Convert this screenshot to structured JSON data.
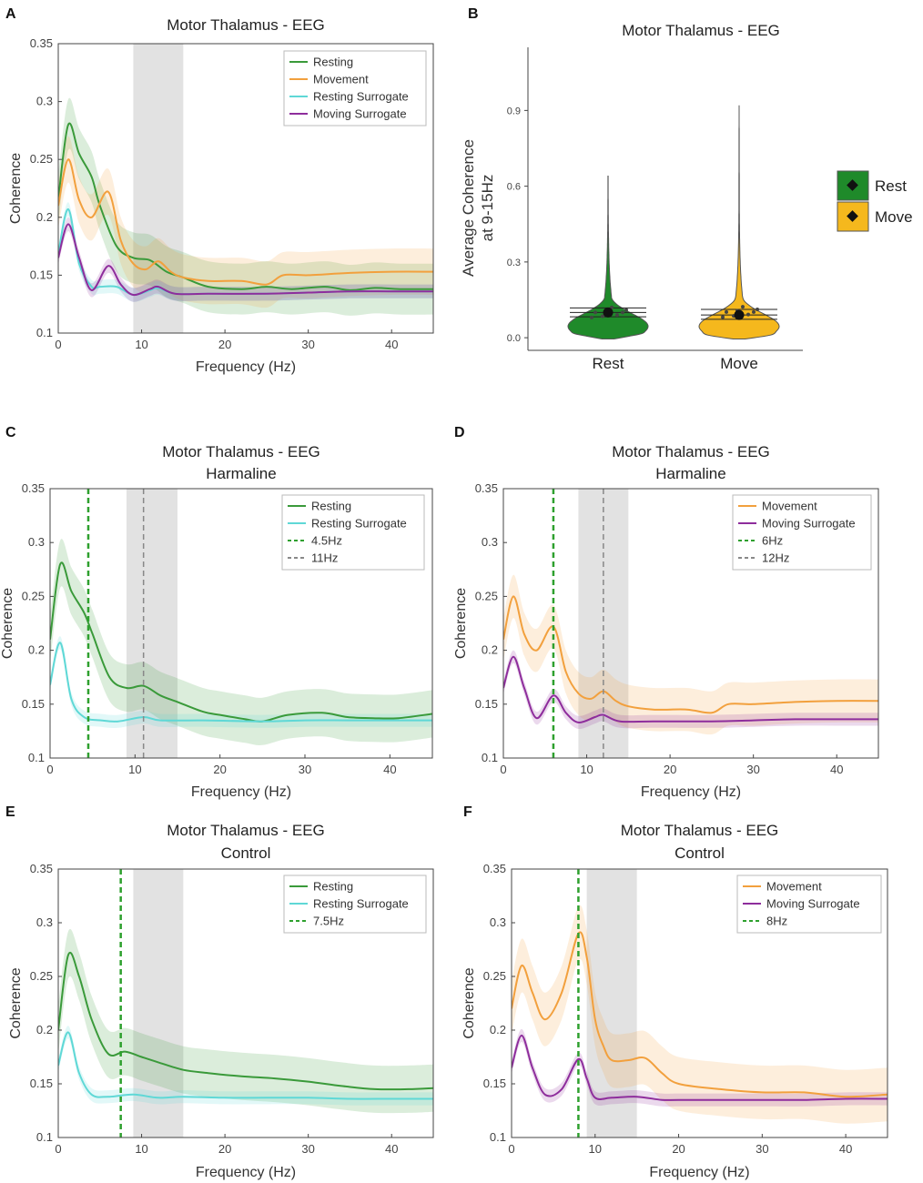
{
  "chart_data": [
    {
      "panel": "A",
      "type": "line",
      "title": "Motor Thalamus - EEG",
      "subtitle": "",
      "xlabel": "Frequency (Hz)",
      "ylabel": "Coherence",
      "xlim": [
        0,
        45
      ],
      "ylim": [
        0.1,
        0.35
      ],
      "xticks": [
        0,
        10,
        20,
        30,
        40
      ],
      "yticks": [
        0.1,
        0.15,
        0.2,
        0.25,
        0.3,
        0.35
      ],
      "ytick_labels": [
        "0.1",
        "0.15",
        "0.2",
        "0.25",
        "0.3",
        "0.35"
      ],
      "shaded_band": [
        9,
        15
      ],
      "legend": [
        "Resting",
        "Movement",
        "Resting Surrogate",
        "Moving Surrogate"
      ],
      "series": [
        {
          "name": "Resting",
          "color": "#3a9a3a",
          "band": 0.022,
          "x": [
            0,
            1.2,
            2.5,
            4,
            5,
            7,
            9,
            11,
            13,
            15,
            18,
            22,
            25,
            28,
            32,
            35,
            38,
            41,
            45
          ],
          "y": [
            0.215,
            0.28,
            0.255,
            0.235,
            0.21,
            0.175,
            0.165,
            0.163,
            0.153,
            0.148,
            0.14,
            0.138,
            0.14,
            0.138,
            0.14,
            0.137,
            0.139,
            0.138,
            0.138
          ]
        },
        {
          "name": "Movement",
          "color": "#f2a03d",
          "band": 0.02,
          "x": [
            0,
            1.2,
            2.5,
            4,
            6,
            7.5,
            9,
            10.5,
            12,
            13.5,
            15,
            18,
            22,
            25,
            27,
            30,
            35,
            40,
            45
          ],
          "y": [
            0.21,
            0.25,
            0.215,
            0.2,
            0.222,
            0.18,
            0.16,
            0.155,
            0.162,
            0.153,
            0.148,
            0.145,
            0.145,
            0.142,
            0.15,
            0.15,
            0.152,
            0.153,
            0.153
          ]
        },
        {
          "name": "Resting Surrogate",
          "color": "#5fd8d6",
          "band": 0.006,
          "x": [
            0,
            1.2,
            2.5,
            4,
            5,
            7,
            9,
            11,
            12,
            14,
            18,
            25,
            30,
            35,
            40,
            45
          ],
          "y": [
            0.168,
            0.207,
            0.16,
            0.14,
            0.14,
            0.14,
            0.133,
            0.137,
            0.139,
            0.134,
            0.134,
            0.134,
            0.135,
            0.136,
            0.136,
            0.136
          ]
        },
        {
          "name": "Moving Surrogate",
          "color": "#8e2d9c",
          "band": 0.006,
          "x": [
            0,
            1.2,
            2.5,
            4,
            6,
            7.5,
            9,
            11,
            12,
            14,
            18,
            25,
            30,
            35,
            40,
            45
          ],
          "y": [
            0.165,
            0.194,
            0.165,
            0.137,
            0.158,
            0.142,
            0.133,
            0.138,
            0.14,
            0.134,
            0.134,
            0.134,
            0.135,
            0.136,
            0.136,
            0.136
          ]
        }
      ]
    },
    {
      "panel": "B",
      "type": "violin",
      "title": "Motor Thalamus - EEG",
      "xlabel": "",
      "ylabel": "Average Coherence at 9-15Hz",
      "ylabel_lines": [
        "Average Coherence",
        "at 9-15Hz"
      ],
      "ylim": [
        -0.05,
        1.15
      ],
      "yticks": [
        0.0,
        0.3,
        0.6,
        0.9
      ],
      "ytick_labels": [
        "0.0",
        "0.3",
        "0.6",
        "0.9"
      ],
      "categories": [
        "Rest",
        "Move"
      ],
      "colors": [
        "#1f8a2a",
        "#f5b81d"
      ],
      "legend": [
        "Rest",
        "Move"
      ],
      "means": [
        0.1,
        0.09
      ],
      "ci": [
        [
          0.083,
          0.118
        ],
        [
          0.073,
          0.112
        ]
      ],
      "max": [
        0.64,
        0.92
      ]
    },
    {
      "panel": "C",
      "type": "line",
      "title": "Motor Thalamus - EEG",
      "subtitle": "Harmaline",
      "xlabel": "Frequency (Hz)",
      "ylabel": "Coherence",
      "xlim": [
        0,
        45
      ],
      "ylim": [
        0.1,
        0.35
      ],
      "xticks": [
        0,
        10,
        20,
        30,
        40
      ],
      "yticks": [
        0.1,
        0.15,
        0.2,
        0.25,
        0.3,
        0.35
      ],
      "ytick_labels": [
        "0.1",
        "0.15",
        "0.2",
        "0.25",
        "0.3",
        "0.35"
      ],
      "shaded_band": [
        9,
        15
      ],
      "vlines": [
        {
          "x": 4.5,
          "color": "#2ea02e",
          "label": "4.5Hz"
        },
        {
          "x": 11,
          "color": "#888888",
          "label": "11Hz"
        }
      ],
      "legend": [
        "Resting",
        "Resting Surrogate",
        "4.5Hz",
        "11Hz"
      ],
      "series": [
        {
          "name": "Resting",
          "color": "#3a9a3a",
          "band": 0.022,
          "x": [
            0,
            1.2,
            2.5,
            4,
            5,
            7,
            9,
            11,
            13,
            15,
            18,
            20,
            23,
            25,
            28,
            32,
            35,
            38,
            41,
            45
          ],
          "y": [
            0.21,
            0.28,
            0.255,
            0.235,
            0.215,
            0.175,
            0.165,
            0.167,
            0.158,
            0.152,
            0.143,
            0.14,
            0.136,
            0.134,
            0.14,
            0.142,
            0.138,
            0.137,
            0.137,
            0.141
          ]
        },
        {
          "name": "Resting Surrogate",
          "color": "#5fd8d6",
          "band": 0.006,
          "x": [
            0,
            1.2,
            2.5,
            4,
            6,
            8,
            11,
            13,
            18,
            25,
            30,
            35,
            40,
            45
          ],
          "y": [
            0.168,
            0.207,
            0.155,
            0.138,
            0.135,
            0.134,
            0.138,
            0.135,
            0.135,
            0.134,
            0.135,
            0.135,
            0.135,
            0.135
          ]
        }
      ]
    },
    {
      "panel": "D",
      "type": "line",
      "title": "Motor Thalamus - EEG",
      "subtitle": "Harmaline",
      "xlabel": "Frequency (Hz)",
      "ylabel": "Coherence",
      "xlim": [
        0,
        45
      ],
      "ylim": [
        0.1,
        0.35
      ],
      "xticks": [
        0,
        10,
        20,
        30,
        40
      ],
      "yticks": [
        0.1,
        0.15,
        0.2,
        0.25,
        0.3,
        0.35
      ],
      "ytick_labels": [
        "0.1",
        "0.15",
        "0.2",
        "0.25",
        "0.3",
        "0.35"
      ],
      "shaded_band": [
        9,
        15
      ],
      "vlines": [
        {
          "x": 6,
          "color": "#2ea02e",
          "label": "6Hz"
        },
        {
          "x": 12,
          "color": "#888888",
          "label": "12Hz"
        }
      ],
      "legend": [
        "Movement",
        "Moving Surrogate",
        "6Hz",
        "12Hz"
      ],
      "series": [
        {
          "name": "Movement",
          "color": "#f2a03d",
          "band": 0.02,
          "x": [
            0,
            1.2,
            2.5,
            4,
            6,
            7.5,
            9,
            10.5,
            12,
            13.5,
            15,
            18,
            22,
            25,
            27,
            30,
            35,
            40,
            45
          ],
          "y": [
            0.21,
            0.25,
            0.215,
            0.2,
            0.222,
            0.18,
            0.16,
            0.155,
            0.162,
            0.153,
            0.148,
            0.145,
            0.145,
            0.142,
            0.15,
            0.15,
            0.152,
            0.153,
            0.153
          ]
        },
        {
          "name": "Moving Surrogate",
          "color": "#8e2d9c",
          "band": 0.006,
          "x": [
            0,
            1.2,
            2.5,
            4,
            6,
            7.5,
            9,
            11,
            12,
            14,
            18,
            25,
            30,
            35,
            40,
            45
          ],
          "y": [
            0.165,
            0.194,
            0.165,
            0.137,
            0.158,
            0.142,
            0.133,
            0.138,
            0.14,
            0.134,
            0.134,
            0.134,
            0.135,
            0.136,
            0.136,
            0.136
          ]
        }
      ]
    },
    {
      "panel": "E",
      "type": "line",
      "title": "Motor Thalamus - EEG",
      "subtitle": "Control",
      "xlabel": "Frequency (Hz)",
      "ylabel": "Coherence",
      "xlim": [
        0,
        45
      ],
      "ylim": [
        0.1,
        0.35
      ],
      "xticks": [
        0,
        10,
        20,
        30,
        40
      ],
      "yticks": [
        0.1,
        0.15,
        0.2,
        0.25,
        0.3,
        0.35
      ],
      "ytick_labels": [
        "0.1",
        "0.15",
        "0.2",
        "0.25",
        "0.3",
        "0.35"
      ],
      "shaded_band": [
        9,
        15
      ],
      "vlines": [
        {
          "x": 7.5,
          "color": "#2ea02e",
          "label": "7.5Hz"
        }
      ],
      "legend": [
        "Resting",
        "Resting Surrogate",
        "7.5Hz"
      ],
      "series": [
        {
          "name": "Resting",
          "color": "#3a9a3a",
          "band": 0.022,
          "x": [
            0,
            1.2,
            2.5,
            4,
            6,
            8,
            10,
            12,
            15,
            18,
            22,
            26,
            30,
            34,
            38,
            42,
            45
          ],
          "y": [
            0.2,
            0.27,
            0.25,
            0.21,
            0.178,
            0.18,
            0.175,
            0.17,
            0.163,
            0.16,
            0.157,
            0.155,
            0.152,
            0.148,
            0.145,
            0.145,
            0.146
          ]
        },
        {
          "name": "Resting Surrogate",
          "color": "#5fd8d6",
          "band": 0.006,
          "x": [
            0,
            1.2,
            2.5,
            4,
            6,
            9,
            12,
            15,
            20,
            25,
            30,
            35,
            40,
            45
          ],
          "y": [
            0.167,
            0.198,
            0.16,
            0.14,
            0.138,
            0.14,
            0.137,
            0.138,
            0.137,
            0.137,
            0.137,
            0.136,
            0.136,
            0.136
          ]
        }
      ]
    },
    {
      "panel": "F",
      "type": "line",
      "title": "Motor Thalamus - EEG",
      "subtitle": "Control",
      "xlabel": "Frequency (Hz)",
      "ylabel": "Coherence",
      "xlim": [
        0,
        45
      ],
      "ylim": [
        0.1,
        0.35
      ],
      "xticks": [
        0,
        10,
        20,
        30,
        40
      ],
      "yticks": [
        0.1,
        0.15,
        0.2,
        0.25,
        0.3,
        0.35
      ],
      "ytick_labels": [
        "0.1",
        "0.15",
        "0.2",
        "0.25",
        "0.3",
        "0.35"
      ],
      "shaded_band": [
        9,
        15
      ],
      "vlines": [
        {
          "x": 8,
          "color": "#2ea02e",
          "label": "8Hz"
        }
      ],
      "legend": [
        "Movement",
        "Moving Surrogate",
        "8Hz"
      ],
      "series": [
        {
          "name": "Movement",
          "color": "#f2a03d",
          "band": 0.025,
          "x": [
            0,
            1.2,
            2.5,
            4,
            6,
            8,
            9,
            10,
            11,
            12,
            14,
            16,
            18,
            20,
            25,
            30,
            35,
            40,
            45
          ],
          "y": [
            0.22,
            0.26,
            0.235,
            0.21,
            0.235,
            0.29,
            0.268,
            0.21,
            0.185,
            0.172,
            0.172,
            0.174,
            0.16,
            0.15,
            0.145,
            0.142,
            0.142,
            0.138,
            0.14
          ]
        },
        {
          "name": "Moving Surrogate",
          "color": "#8e2d9c",
          "band": 0.006,
          "x": [
            0,
            1.2,
            2.5,
            4,
            6,
            8,
            9,
            10,
            12,
            15,
            18,
            20,
            25,
            30,
            35,
            40,
            45
          ],
          "y": [
            0.165,
            0.195,
            0.165,
            0.14,
            0.145,
            0.173,
            0.155,
            0.137,
            0.137,
            0.138,
            0.135,
            0.135,
            0.135,
            0.135,
            0.135,
            0.136,
            0.136
          ]
        }
      ]
    }
  ]
}
